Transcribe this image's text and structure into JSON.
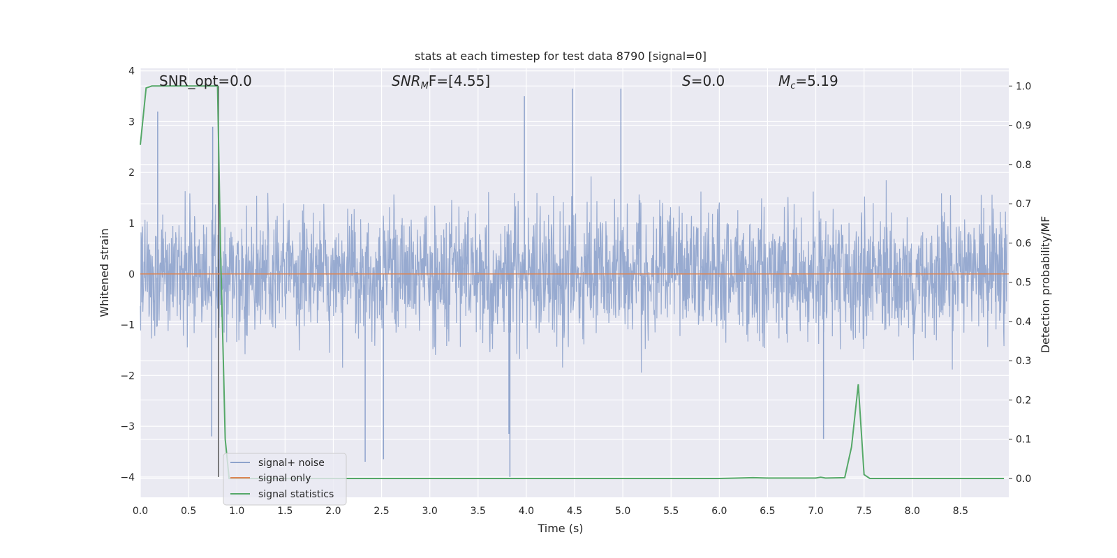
{
  "chart_data": {
    "type": "line",
    "title": "stats at each timestep for test data 8790 [signal=0]",
    "xlabel": "Time (s)",
    "ylabel_left": "Whitened strain",
    "ylabel_right": "Detection probability/MF",
    "xlim": [
      0.0,
      9.0
    ],
    "ylim_left": [
      -4.4,
      4.05
    ],
    "ylim_right": [
      -0.048,
      1.045
    ],
    "xticks": [
      0.0,
      0.5,
      1.0,
      1.5,
      2.0,
      2.5,
      3.0,
      3.5,
      4.0,
      4.5,
      5.0,
      5.5,
      6.0,
      6.5,
      7.0,
      7.5,
      8.0,
      8.5
    ],
    "xtick_labels": [
      "0.0",
      "0.5",
      "1.0",
      "1.5",
      "2.0",
      "2.5",
      "3.0",
      "3.5",
      "4.0",
      "4.5",
      "5.0",
      "5.5",
      "6.0",
      "6.5",
      "7.0",
      "7.5",
      "8.0",
      "8.5"
    ],
    "yticks_left": [
      4,
      3,
      2,
      1,
      0,
      -1,
      -2,
      -3,
      -4
    ],
    "ytick_labels_left": [
      "4",
      "3",
      "2",
      "1",
      "0",
      "−1",
      "−2",
      "−3",
      "−4"
    ],
    "yticks_right": [
      1.0,
      0.9,
      0.8,
      0.7,
      0.6,
      0.5,
      0.4,
      0.3,
      0.2,
      0.1,
      0.0
    ],
    "ytick_labels_right": [
      "1.0",
      "0.9",
      "0.8",
      "0.7",
      "0.6",
      "0.5",
      "0.4",
      "0.3",
      "0.2",
      "0.1",
      "0.0"
    ],
    "grid": true,
    "legend_position": "lower-left",
    "annotations": {
      "snr_opt": "SNR_opt=0.0",
      "snr_mf_main": "SNR",
      "snr_mf_sub": "M",
      "snr_mf_rest": "F=[4.55]",
      "s_main": "S",
      "s_rest": "=0.0",
      "mc_main": "M",
      "mc_sub": "c",
      "mc_rest": "=5.19"
    },
    "marker_line_x": 0.81,
    "series": [
      {
        "name": "signal+ noise",
        "axis": "left",
        "color": "#8ea3cc",
        "style": "noise",
        "amplitude_typical": 1.3,
        "peaks": [
          [
            0.18,
            3.2
          ],
          [
            0.75,
            2.9
          ],
          [
            3.98,
            3.5
          ],
          [
            4.48,
            3.65
          ],
          [
            4.98,
            3.65
          ],
          [
            3.83,
            -4.0
          ],
          [
            2.33,
            -3.7
          ],
          [
            2.52,
            -3.65
          ],
          [
            7.08,
            -3.25
          ],
          [
            0.74,
            -3.2
          ],
          [
            3.82,
            -3.15
          ]
        ]
      },
      {
        "name": "signal only",
        "axis": "left",
        "color": "#dd8452",
        "x": [
          0.0,
          9.0
        ],
        "y": [
          0.0,
          0.0
        ]
      },
      {
        "name": "signal statistics",
        "axis": "right",
        "color": "#55a868",
        "x": [
          0.0,
          0.06,
          0.12,
          0.25,
          0.5,
          0.75,
          0.8,
          0.83,
          0.86,
          0.88,
          0.92,
          1.0,
          2.0,
          3.0,
          4.0,
          5.0,
          6.0,
          6.35,
          6.5,
          7.0,
          7.05,
          7.1,
          7.3,
          7.37,
          7.44,
          7.5,
          7.56,
          8.0,
          8.5,
          8.95
        ],
        "y": [
          0.85,
          0.995,
          1.0,
          1.0,
          1.0,
          1.0,
          1.0,
          0.6,
          0.3,
          0.1,
          0.0,
          0.0,
          0.0,
          0.0,
          0.0,
          0.0,
          0.0,
          0.002,
          0.001,
          0.001,
          0.003,
          0.001,
          0.002,
          0.08,
          0.24,
          0.01,
          0.0,
          0.0,
          0.0,
          0.0
        ]
      }
    ]
  }
}
